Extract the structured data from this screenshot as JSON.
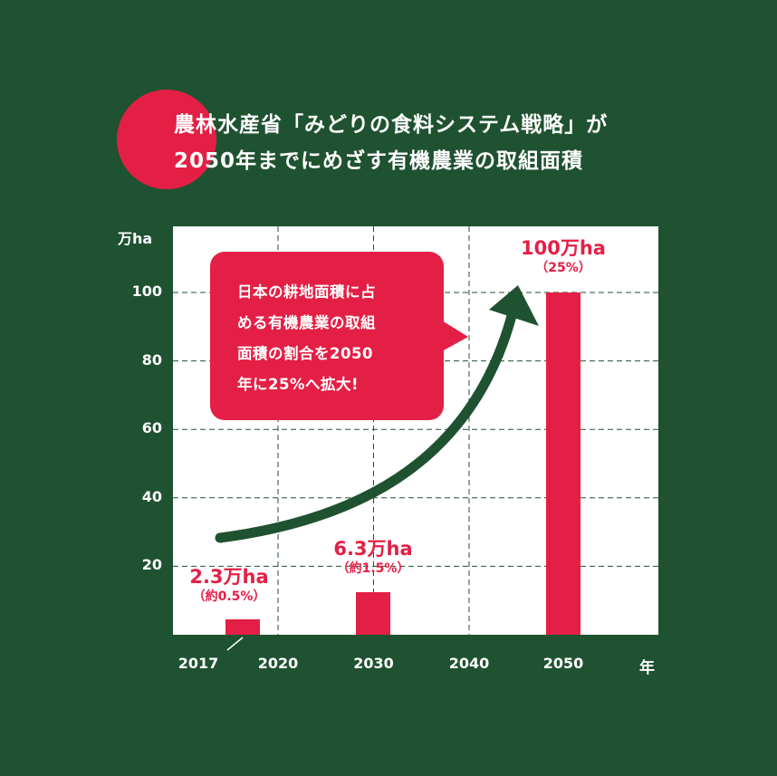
{
  "title": {
    "line1": "農林水産省「みどりの食料システム戦略」が",
    "line2": "2050年までにめざす有機農業の取組面積"
  },
  "callout": {
    "lines": [
      "日本の耕地面積に占",
      "める有機農業の取組",
      "面積の割合を2050",
      "年に25%へ拡大!"
    ]
  },
  "colors": {
    "background": "#1f5230",
    "accent": "#e41f45",
    "plot_bg": "#ffffff"
  },
  "chart_data": {
    "type": "bar",
    "ylabel": "万ha",
    "xlabel": "年",
    "ylim": [
      0,
      100
    ],
    "yticks": [
      "20",
      "40",
      "60",
      "80",
      "100"
    ],
    "xticks": [
      "2017",
      "2020",
      "2030",
      "2040",
      "2050"
    ],
    "grid": true,
    "categories": [
      "2017",
      "2030",
      "2050"
    ],
    "values": [
      2.3,
      6.3,
      100
    ],
    "data_labels": [
      {
        "value": "2.3万ha",
        "pct": "（約0.5%）"
      },
      {
        "value": "6.3万ha",
        "pct": "（約1.5%）"
      },
      {
        "value": "100万ha",
        "pct": "（25%）"
      }
    ]
  }
}
